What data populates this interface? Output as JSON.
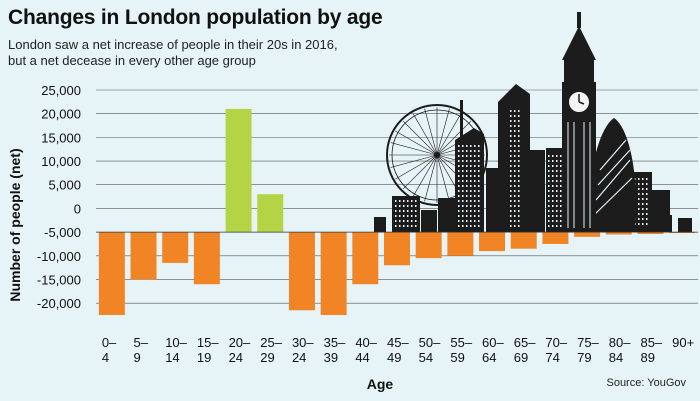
{
  "title": "Changes in London population by age",
  "subtitle_lines": [
    "London saw a net increase of people in their 20s in 2016,",
    "but a net decease in every other age group"
  ],
  "source": "Source: YouGov",
  "colors": {
    "background": "#e6f3f7",
    "positive": "#b4d445",
    "negative": "#f18526",
    "grid": "#555555",
    "skyline": "#1c1c1c"
  },
  "chart_data": {
    "type": "bar",
    "categories": [
      [
        "0–",
        "4"
      ],
      [
        "5–",
        "9"
      ],
      [
        "10–",
        "14"
      ],
      [
        "15–",
        "19"
      ],
      [
        "20–",
        "24"
      ],
      [
        "25–",
        "29"
      ],
      [
        "30–",
        "24"
      ],
      [
        "35–",
        "39"
      ],
      [
        "40–",
        "44"
      ],
      [
        "45–",
        "49"
      ],
      [
        "50–",
        "54"
      ],
      [
        "55–",
        "59"
      ],
      [
        "60–",
        "64"
      ],
      [
        "65–",
        "69"
      ],
      [
        "70–",
        "74"
      ],
      [
        "75–",
        "79"
      ],
      [
        "80–",
        "84"
      ],
      [
        "85–",
        "89"
      ],
      [
        "90+",
        ""
      ]
    ],
    "values": [
      -22500,
      -15000,
      -11500,
      -16000,
      21000,
      3000,
      -21500,
      -22500,
      -16000,
      -12000,
      -10500,
      -10000,
      -9000,
      -8500,
      -7500,
      -6000,
      -5500,
      -5400,
      -5200
    ],
    "yticks": [
      25000,
      20000,
      15000,
      10000,
      5000,
      0,
      -5000,
      -10000,
      -15000,
      -20000
    ],
    "ytick_labels": [
      "25,000",
      "20,000",
      "15,000",
      "10,000",
      "5,000",
      "0",
      "-5,000",
      "-10,000",
      "-15,000",
      "-20,000"
    ],
    "ylim": [
      -22500,
      25000
    ],
    "xlabel": "Age",
    "ylabel": "Number of people (net)",
    "grid": true,
    "baseline": -5000
  }
}
